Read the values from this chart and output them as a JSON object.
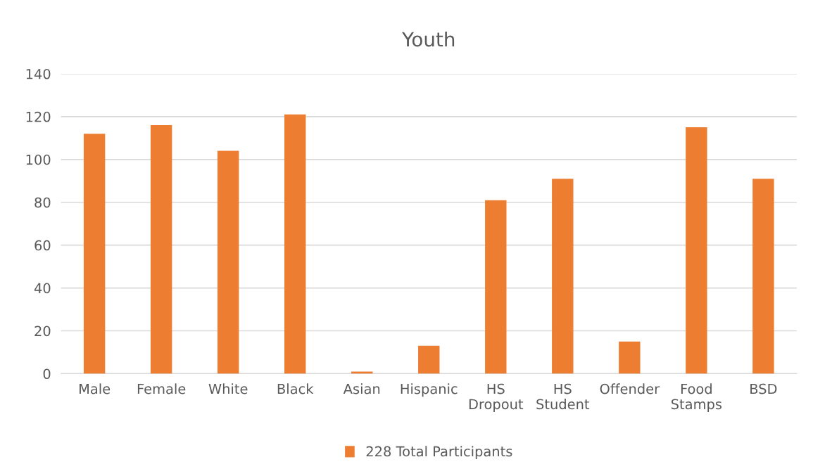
{
  "chart_data": {
    "type": "bar",
    "title": "Youth",
    "categories": [
      "Male",
      "Female",
      "White",
      "Black",
      "Asian",
      "Hispanic",
      "HS Dropout",
      "HS Student",
      "Offender",
      "Food Stamps",
      "BSD"
    ],
    "series": [
      {
        "name": "228 Total Participants",
        "color": "#ed7d31",
        "values": [
          112,
          116,
          104,
          121,
          1,
          13,
          81,
          91,
          15,
          115,
          91
        ]
      }
    ],
    "ylim": [
      0,
      140
    ],
    "yticks": [
      0,
      20,
      40,
      60,
      80,
      100,
      120,
      140
    ],
    "grid": "y",
    "legend": "bottom"
  }
}
